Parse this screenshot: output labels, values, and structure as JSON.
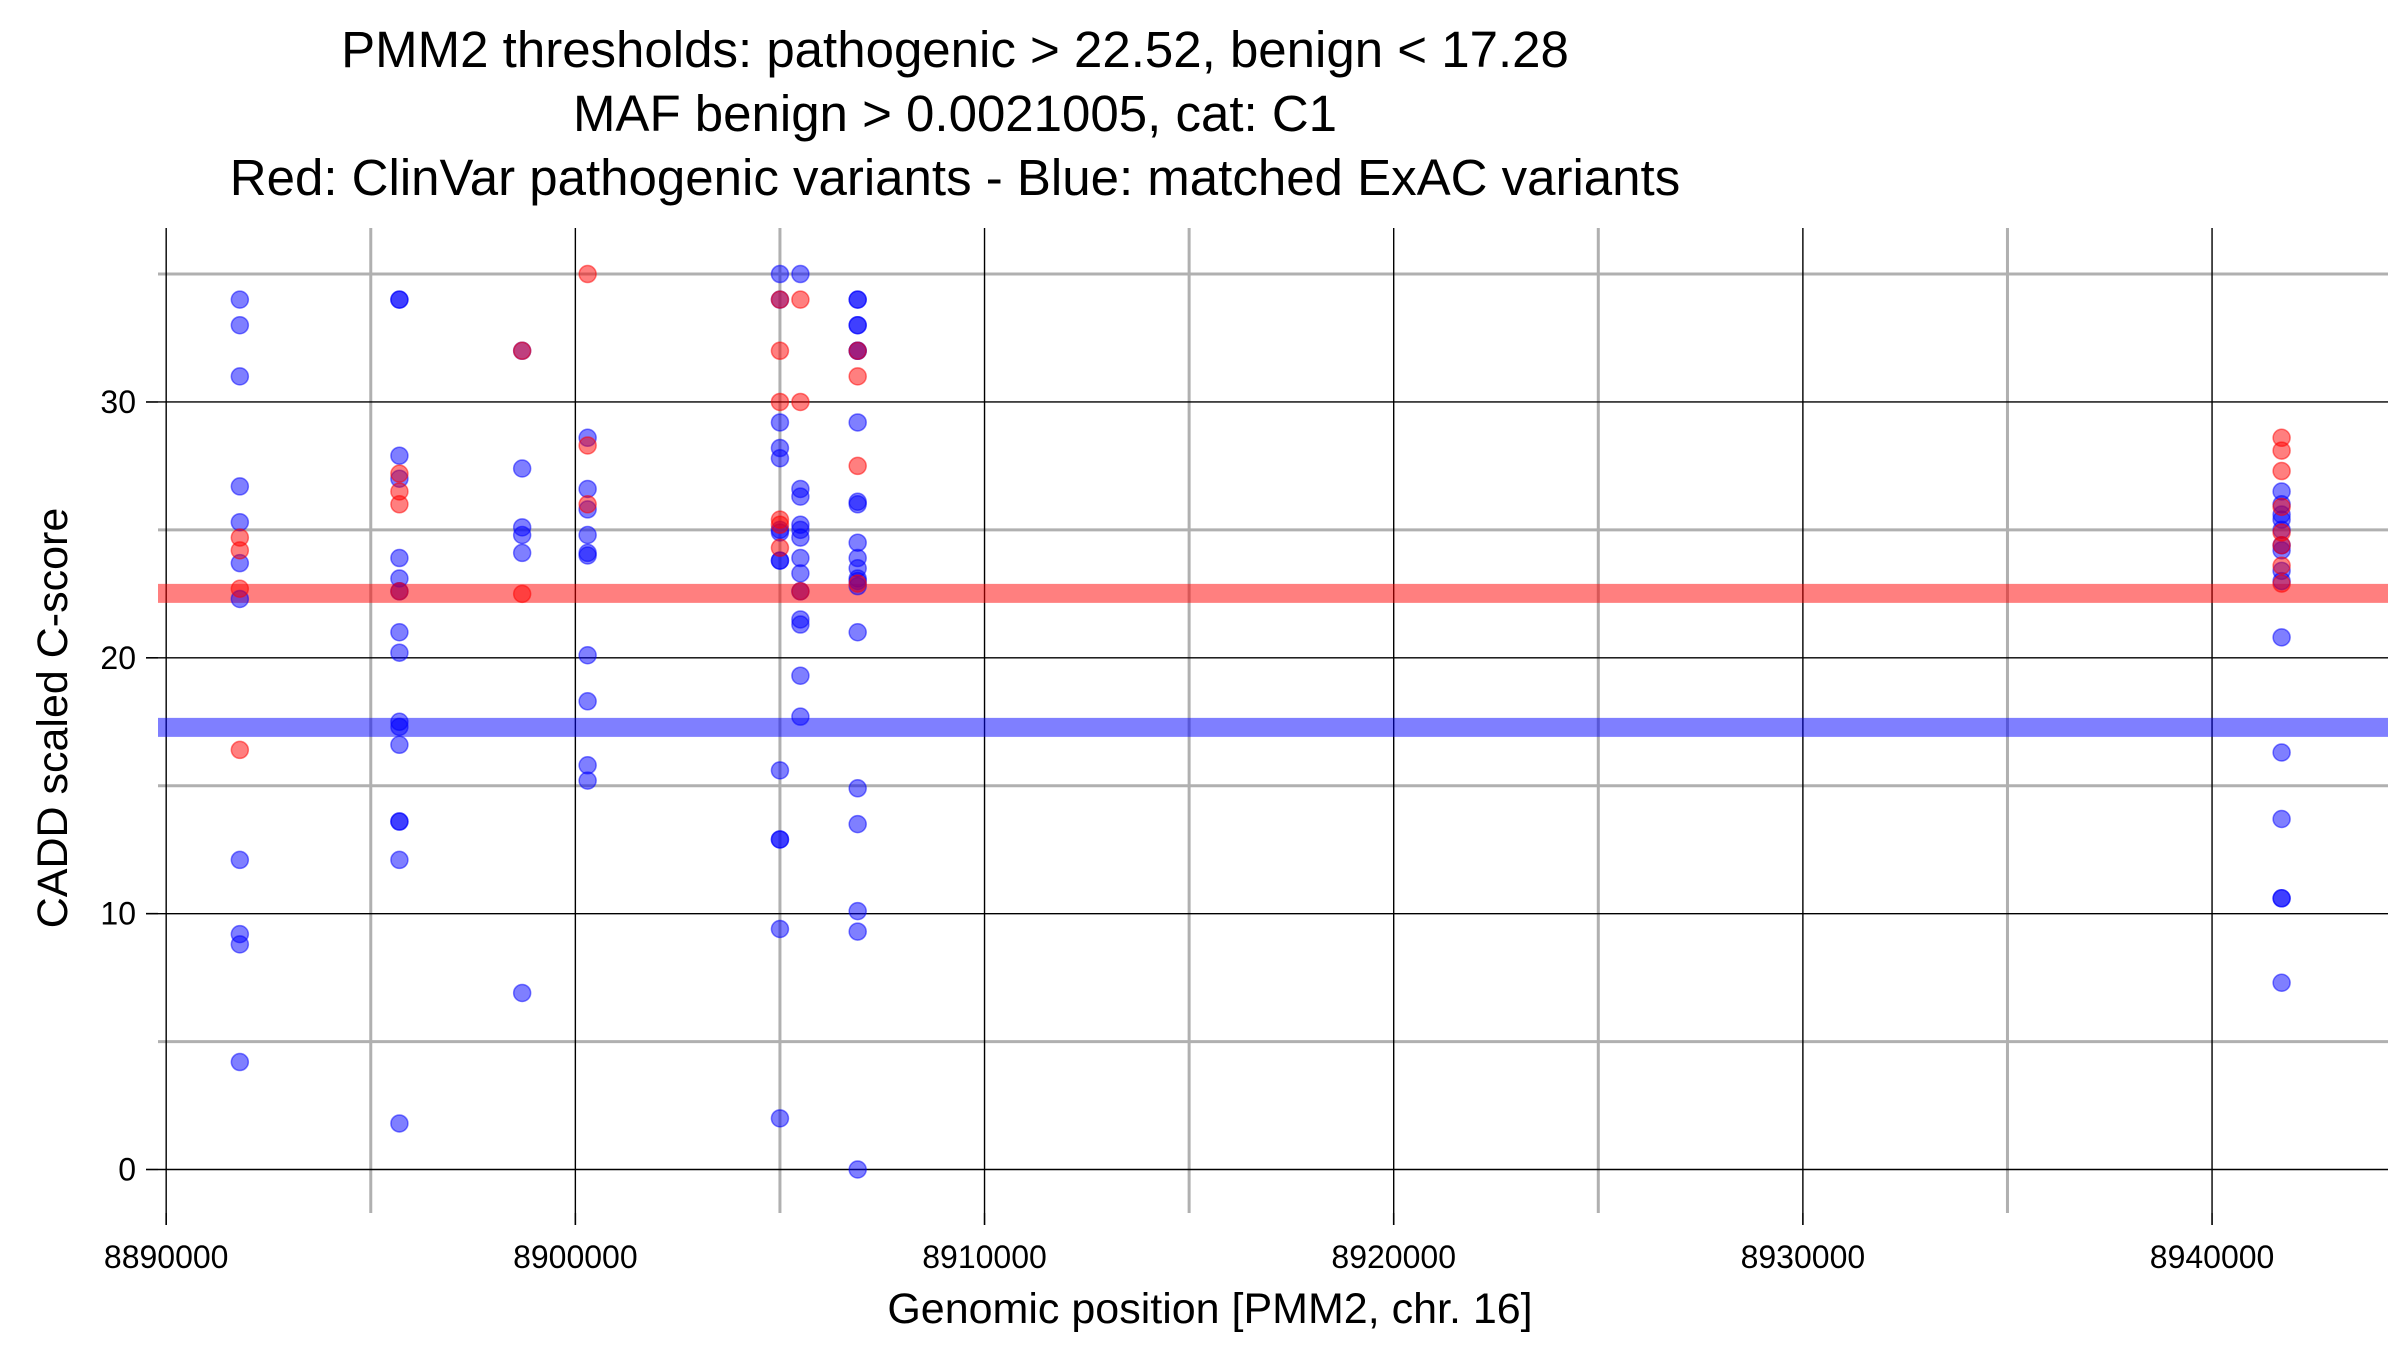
{
  "chart_data": {
    "type": "scatter",
    "title_lines": [
      "PMM2 thresholds: pathogenic > 22.52, benign < 17.28",
      "MAF benign > 0.0021005, cat: C1",
      "Red: ClinVar pathogenic variants - Blue: matched ExAC variants"
    ],
    "xlabel": "Genomic position [PMM2, chr. 16]",
    "ylabel": "CADD scaled C-score",
    "xlim": [
      8889800,
      8944300
    ],
    "ylim": [
      -1.7,
      36.8
    ],
    "x_major_ticks": [
      8890000,
      8900000,
      8910000,
      8920000,
      8930000,
      8940000
    ],
    "x_tick_labels": [
      "8890000",
      "8900000",
      "8910000",
      "8920000",
      "8930000",
      "8940000"
    ],
    "x_minor_ticks": [
      8895000,
      8905000,
      8915000,
      8925000,
      8935000
    ],
    "y_major_ticks": [
      0,
      10,
      20,
      30
    ],
    "y_tick_labels": [
      "0",
      "10",
      "20",
      "30"
    ],
    "y_minor_ticks": [
      5,
      15,
      25,
      35
    ],
    "grid": true,
    "thresholds": [
      {
        "name": "pathogenic",
        "value": 22.52,
        "color": "#ff0000"
      },
      {
        "name": "benign",
        "value": 17.28,
        "color": "#0000ff"
      }
    ],
    "colors": {
      "pathogenic": "#ff0000",
      "benign": "#0000ff"
    },
    "series": [
      {
        "name": "ClinVar pathogenic",
        "color": "#ff0000",
        "points": [
          [
            8891800,
            24.7
          ],
          [
            8891800,
            24.2
          ],
          [
            8891800,
            16.4
          ],
          [
            8891800,
            22.7
          ],
          [
            8895700,
            27.2
          ],
          [
            8895700,
            26.5
          ],
          [
            8895700,
            26.0
          ],
          [
            8895700,
            22.6
          ],
          [
            8898700,
            32.0
          ],
          [
            8898700,
            22.5
          ],
          [
            8900300,
            35.0
          ],
          [
            8900300,
            28.3
          ],
          [
            8900300,
            26.0
          ],
          [
            8905000,
            34.0
          ],
          [
            8905000,
            32.0
          ],
          [
            8905000,
            30.0
          ],
          [
            8905000,
            25.4
          ],
          [
            8905000,
            25.2
          ],
          [
            8905000,
            24.3
          ],
          [
            8905500,
            34.0
          ],
          [
            8905500,
            30.0
          ],
          [
            8905500,
            22.6
          ],
          [
            8906900,
            32.0
          ],
          [
            8906900,
            31.0
          ],
          [
            8906900,
            27.5
          ],
          [
            8906900,
            22.9
          ],
          [
            8941700,
            28.6
          ],
          [
            8941700,
            28.1
          ],
          [
            8941700,
            27.3
          ],
          [
            8941700,
            25.9
          ],
          [
            8941700,
            24.9
          ],
          [
            8941700,
            24.4
          ],
          [
            8941700,
            23.6
          ],
          [
            8941700,
            22.9
          ]
        ]
      },
      {
        "name": "matched ExAC",
        "color": "#0000ff",
        "points": [
          [
            8891800,
            34.0
          ],
          [
            8891800,
            33.0
          ],
          [
            8891800,
            31.0
          ],
          [
            8891800,
            26.7
          ],
          [
            8891800,
            25.3
          ],
          [
            8891800,
            23.7
          ],
          [
            8891800,
            22.3
          ],
          [
            8891800,
            12.1
          ],
          [
            8891800,
            9.2
          ],
          [
            8891800,
            8.8
          ],
          [
            8891800,
            4.2
          ],
          [
            8895700,
            34.0
          ],
          [
            8895700,
            34.0
          ],
          [
            8895700,
            27.9
          ],
          [
            8895700,
            27.0
          ],
          [
            8895700,
            23.9
          ],
          [
            8895700,
            23.1
          ],
          [
            8895700,
            22.6
          ],
          [
            8895700,
            21.0
          ],
          [
            8895700,
            20.2
          ],
          [
            8895700,
            17.5
          ],
          [
            8895700,
            17.3
          ],
          [
            8895700,
            16.6
          ],
          [
            8895700,
            13.6
          ],
          [
            8895700,
            13.6
          ],
          [
            8895700,
            12.1
          ],
          [
            8895700,
            1.8
          ],
          [
            8898700,
            32.0
          ],
          [
            8898700,
            27.4
          ],
          [
            8898700,
            25.1
          ],
          [
            8898700,
            24.8
          ],
          [
            8898700,
            24.1
          ],
          [
            8898700,
            6.9
          ],
          [
            8900300,
            28.6
          ],
          [
            8900300,
            26.6
          ],
          [
            8900300,
            25.8
          ],
          [
            8900300,
            24.8
          ],
          [
            8900300,
            24.1
          ],
          [
            8900300,
            24.0
          ],
          [
            8900300,
            20.1
          ],
          [
            8900300,
            18.3
          ],
          [
            8900300,
            15.8
          ],
          [
            8900300,
            15.2
          ],
          [
            8905000,
            35.0
          ],
          [
            8905000,
            34.0
          ],
          [
            8905000,
            29.2
          ],
          [
            8905000,
            28.2
          ],
          [
            8905000,
            27.8
          ],
          [
            8905000,
            25.0
          ],
          [
            8905000,
            24.9
          ],
          [
            8905000,
            23.8
          ],
          [
            8905000,
            23.8
          ],
          [
            8905000,
            15.6
          ],
          [
            8905000,
            12.9
          ],
          [
            8905000,
            12.9
          ],
          [
            8905000,
            9.4
          ],
          [
            8905000,
            2.0
          ],
          [
            8905500,
            35.0
          ],
          [
            8905500,
            26.6
          ],
          [
            8905500,
            26.3
          ],
          [
            8905500,
            25.2
          ],
          [
            8905500,
            25.0
          ],
          [
            8905500,
            24.7
          ],
          [
            8905500,
            23.9
          ],
          [
            8905500,
            23.3
          ],
          [
            8905500,
            22.6
          ],
          [
            8905500,
            21.5
          ],
          [
            8905500,
            21.3
          ],
          [
            8905500,
            19.3
          ],
          [
            8905500,
            17.7
          ],
          [
            8906900,
            34.0
          ],
          [
            8906900,
            34.0
          ],
          [
            8906900,
            33.0
          ],
          [
            8906900,
            33.0
          ],
          [
            8906900,
            32.0
          ],
          [
            8906900,
            32.0
          ],
          [
            8906900,
            29.2
          ],
          [
            8906900,
            26.1
          ],
          [
            8906900,
            26.0
          ],
          [
            8906900,
            24.5
          ],
          [
            8906900,
            23.9
          ],
          [
            8906900,
            23.5
          ],
          [
            8906900,
            23.1
          ],
          [
            8906900,
            23.0
          ],
          [
            8906900,
            22.8
          ],
          [
            8906900,
            21.0
          ],
          [
            8906900,
            14.9
          ],
          [
            8906900,
            13.5
          ],
          [
            8906900,
            10.1
          ],
          [
            8906900,
            9.3
          ],
          [
            8906900,
            0.0
          ],
          [
            8941700,
            26.5
          ],
          [
            8941700,
            26.0
          ],
          [
            8941700,
            25.6
          ],
          [
            8941700,
            25.4
          ],
          [
            8941700,
            25.0
          ],
          [
            8941700,
            24.4
          ],
          [
            8941700,
            24.2
          ],
          [
            8941700,
            23.4
          ],
          [
            8941700,
            23.0
          ],
          [
            8941700,
            20.8
          ],
          [
            8941700,
            16.3
          ],
          [
            8941700,
            13.7
          ],
          [
            8941700,
            10.6
          ],
          [
            8941700,
            10.6
          ],
          [
            8941700,
            7.3
          ]
        ]
      }
    ]
  }
}
